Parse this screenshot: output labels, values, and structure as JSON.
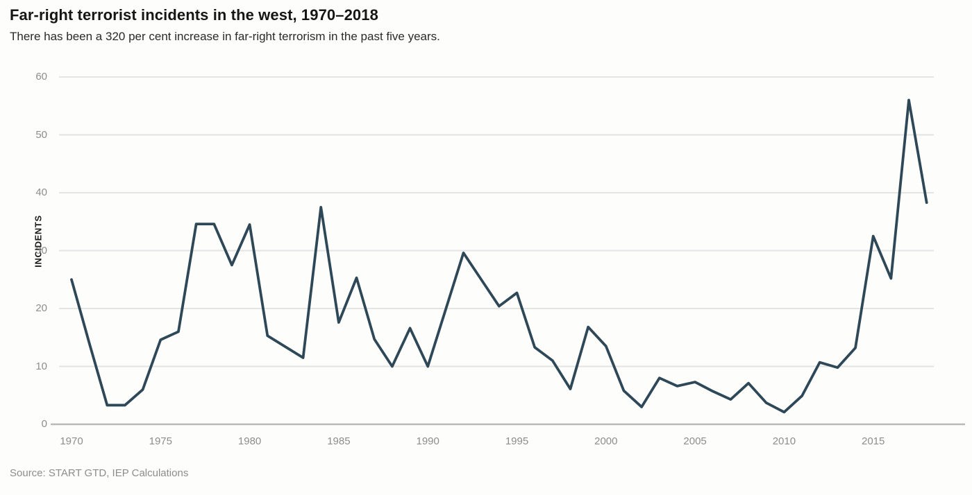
{
  "header": {
    "title": "Far-right terrorist incidents in the west, 1970–2018",
    "subtitle": "There has been a 320 per cent increase in far-right terrorism in the past five years."
  },
  "footer": {
    "source": "Source: START GTD, IEP Calculations"
  },
  "colors": {
    "line": "#2f4858",
    "gridline": "#e4e4e4",
    "axis_line": "#b9b9b9",
    "tick_text": "#8d8d8d",
    "title_text": "#161616",
    "background": "#fdfdfc"
  },
  "chart_data": {
    "type": "line",
    "title": "Far-right terrorist incidents in the west, 1970–2018",
    "subtitle": "There has been a 320 per cent increase in far-right terrorism in the past five years.",
    "xlabel": "",
    "ylabel": "INCIDENTS",
    "ylim": [
      0,
      60
    ],
    "xlim": [
      1970,
      2018
    ],
    "grid": true,
    "legend": false,
    "y_ticks": [
      0,
      10,
      20,
      30,
      40,
      50,
      60
    ],
    "x_ticks": [
      1970,
      1975,
      1980,
      1985,
      1990,
      1995,
      2000,
      2005,
      2010,
      2015
    ],
    "x": [
      1970,
      1971,
      1972,
      1973,
      1974,
      1975,
      1976,
      1977,
      1978,
      1979,
      1980,
      1981,
      1982,
      1983,
      1984,
      1985,
      1986,
      1987,
      1988,
      1989,
      1990,
      1991,
      1992,
      1993,
      1994,
      1995,
      1996,
      1997,
      1998,
      1999,
      2000,
      2001,
      2002,
      2003,
      2004,
      2005,
      2006,
      2007,
      2008,
      2009,
      2010,
      2011,
      2012,
      2013,
      2014,
      2015,
      2016,
      2017,
      2018
    ],
    "values": [
      25,
      14,
      3.3,
      3.3,
      6,
      14.6,
      16,
      34.6,
      34.6,
      27.5,
      34.5,
      15.3,
      13.4,
      11.5,
      37.5,
      17.6,
      25.3,
      14.7,
      10,
      16.6,
      10,
      19.8,
      29.6,
      25,
      20.4,
      22.7,
      13.3,
      11,
      6.1,
      16.8,
      13.5,
      5.8,
      3,
      8,
      6.6,
      7.3,
      5.7,
      4.3,
      7.1,
      3.7,
      2.1,
      4.9,
      10.7,
      9.8,
      13.2,
      32.5,
      25.2,
      56,
      38.3
    ]
  }
}
